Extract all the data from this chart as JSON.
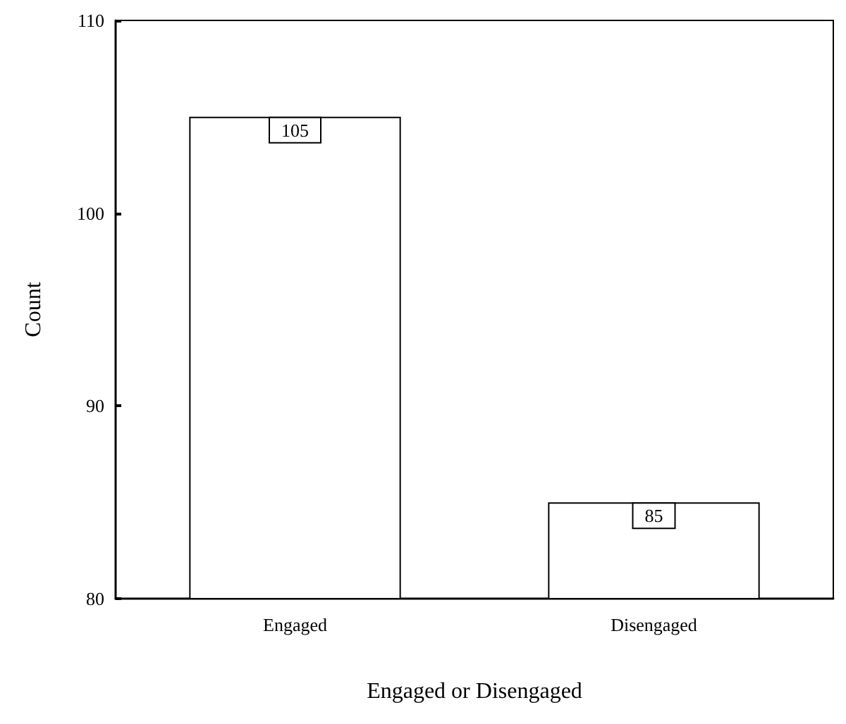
{
  "chart_data": {
    "type": "bar",
    "xlabel": "Engaged or Disengaged",
    "ylabel": "Count",
    "categories": [
      "Engaged",
      "Disengaged"
    ],
    "values": [
      105,
      85
    ],
    "color": "#ffffff",
    "ylim": [
      80,
      110
    ],
    "yticks": [
      80,
      90,
      100,
      110
    ],
    "grid": false,
    "data_labels": true
  }
}
